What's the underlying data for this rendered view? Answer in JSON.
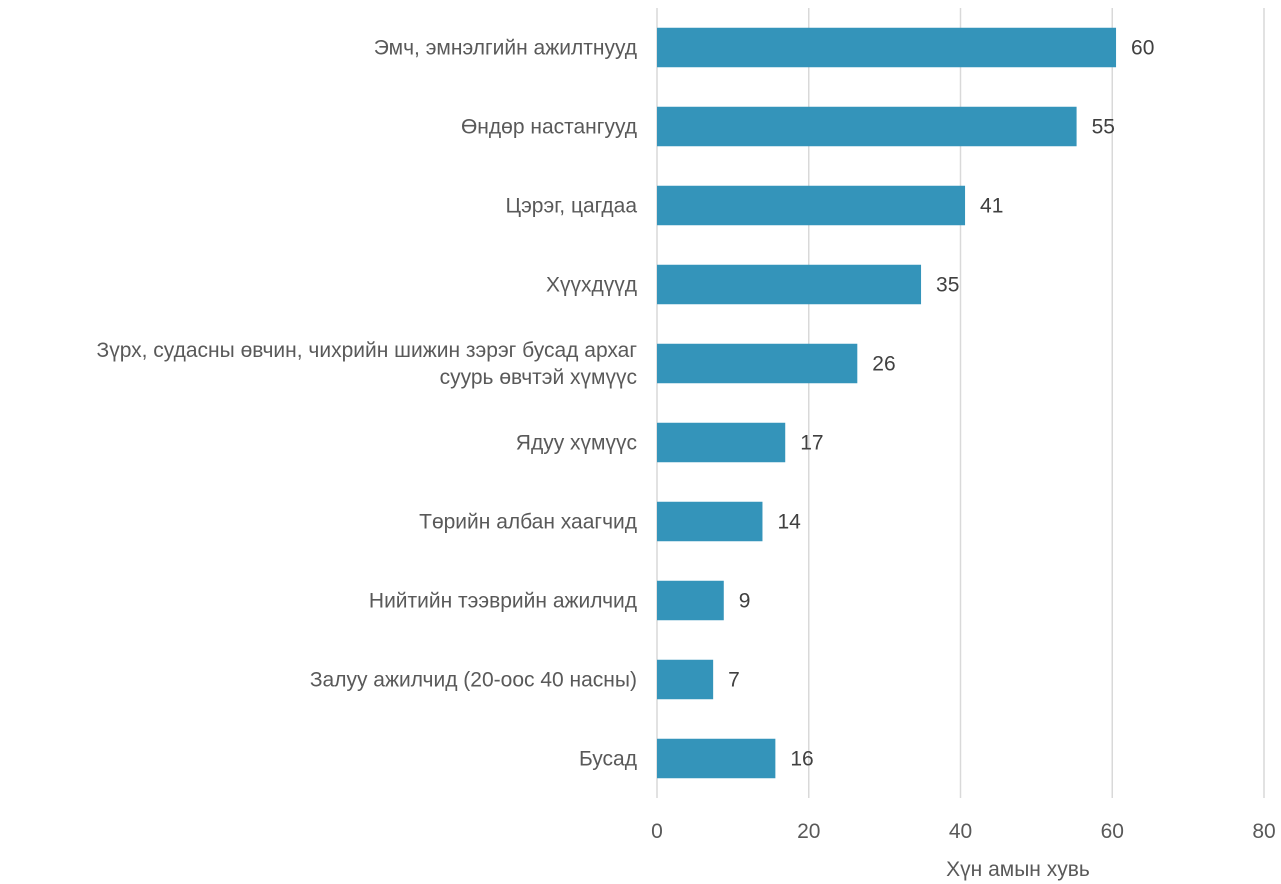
{
  "chart_data": {
    "type": "bar",
    "orientation": "horizontal",
    "categories": [
      "Эмч, эмнэлгийн ажилтнууд",
      "Өндөр настангууд",
      "Цэрэг, цагдаа",
      "Хүүхдүүд",
      "Зүрх, судасны өвчин, чихрийн шижин зэрэг бусад архаг суурь өвчтэй хүмүүс",
      "Ядуу хүмүүс",
      "Төрийн албан хаагчид",
      "Нийтийн тээврийн ажилчид",
      "Залуу ажилчид (20-оос 40 насны)",
      "Бусад"
    ],
    "category_lines": [
      [
        "Эмч, эмнэлгийн ажилтнууд"
      ],
      [
        "Өндөр настангууд"
      ],
      [
        "Цэрэг, цагдаа"
      ],
      [
        "Хүүхдүүд"
      ],
      [
        "Зүрх, судасны өвчин, чихрийн шижин зэрэг бусад архаг",
        "суурь өвчтэй хүмүүс"
      ],
      [
        "Ядуу хүмүүс"
      ],
      [
        "Төрийн албан хаагчид"
      ],
      [
        "Нийтийн тээврийн ажилчид"
      ],
      [
        "Залуу ажилчид (20-оос 40 насны)"
      ],
      [
        "Бусад"
      ]
    ],
    "values": [
      60.5,
      55.3,
      40.6,
      34.8,
      26.4,
      16.9,
      13.9,
      8.8,
      7.4,
      15.6
    ],
    "data_labels": [
      "60",
      "55",
      "41",
      "35",
      "26",
      "17",
      "14",
      "9",
      "7",
      "16"
    ],
    "title": "",
    "xlabel": "Хүн амын хувь",
    "ylabel": "",
    "xlim": [
      0,
      80
    ],
    "x_ticks": [
      0,
      20,
      40,
      60,
      80
    ],
    "grid": "vertical",
    "legend": "none",
    "bar_color": "#3494ba"
  }
}
